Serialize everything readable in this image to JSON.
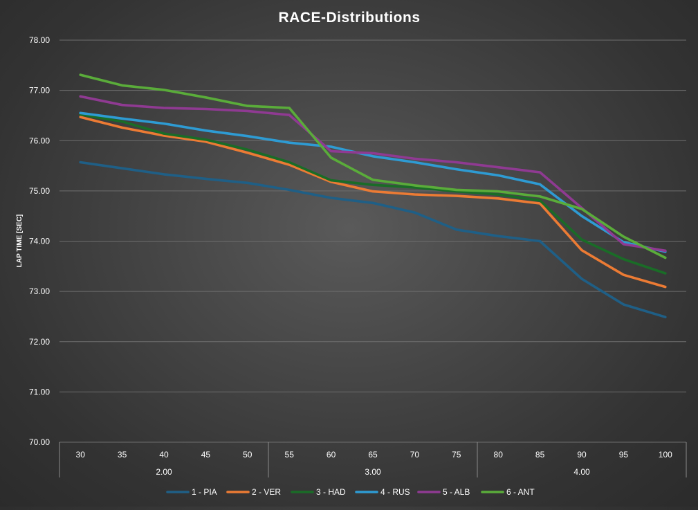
{
  "chart_data": {
    "type": "line",
    "title": "RACE-Distributions",
    "xlabel": "",
    "ylabel": "LAP TIME [SEC]",
    "ylim": [
      70,
      78
    ],
    "yticks": [
      "70.00",
      "71.00",
      "72.00",
      "73.00",
      "74.00",
      "75.00",
      "76.00",
      "77.00",
      "78.00"
    ],
    "categories": [
      "30",
      "35",
      "40",
      "45",
      "50",
      "55",
      "60",
      "65",
      "70",
      "75",
      "80",
      "85",
      "90",
      "95",
      "100"
    ],
    "category_groups": [
      {
        "label": "2.00",
        "start": 0,
        "end": 4
      },
      {
        "label": "3.00",
        "start": 5,
        "end": 9
      },
      {
        "label": "4.00",
        "start": 10,
        "end": 14
      }
    ],
    "legend_position": "bottom",
    "grid": true,
    "series": [
      {
        "name": "1 - PIA",
        "color": "#1f5f86",
        "values": [
          75.57,
          75.45,
          75.33,
          75.24,
          75.16,
          75.02,
          74.86,
          74.76,
          74.57,
          74.23,
          74.1,
          74.0,
          73.25,
          72.74,
          72.49
        ]
      },
      {
        "name": "2 - VER",
        "color": "#ec7b34",
        "values": [
          76.47,
          76.26,
          76.1,
          75.98,
          75.76,
          75.52,
          75.18,
          74.99,
          74.93,
          74.9,
          74.85,
          74.75,
          73.82,
          73.33,
          73.09
        ]
      },
      {
        "name": "3 - HAD",
        "color": "#1a6c27",
        "values": [
          76.52,
          76.38,
          76.14,
          76.02,
          75.82,
          75.57,
          75.21,
          75.12,
          75.07,
          74.99,
          74.93,
          74.81,
          74.03,
          73.64,
          73.36
        ]
      },
      {
        "name": "4 - RUS",
        "color": "#2e9bd3",
        "values": [
          76.55,
          76.44,
          76.34,
          76.2,
          76.09,
          75.96,
          75.88,
          75.69,
          75.57,
          75.43,
          75.31,
          75.13,
          74.5,
          73.98,
          73.79
        ]
      },
      {
        "name": "5 - ALB",
        "color": "#8f3a92",
        "values": [
          76.88,
          76.71,
          76.65,
          76.63,
          76.59,
          76.51,
          75.79,
          75.75,
          75.64,
          75.57,
          75.47,
          75.37,
          74.66,
          73.94,
          73.81
        ]
      },
      {
        "name": "6 - ANT",
        "color": "#5aac3a",
        "values": [
          77.31,
          77.1,
          77.01,
          76.86,
          76.69,
          76.65,
          75.66,
          75.22,
          75.11,
          75.02,
          74.99,
          74.89,
          74.64,
          74.09,
          73.67
        ]
      }
    ]
  }
}
